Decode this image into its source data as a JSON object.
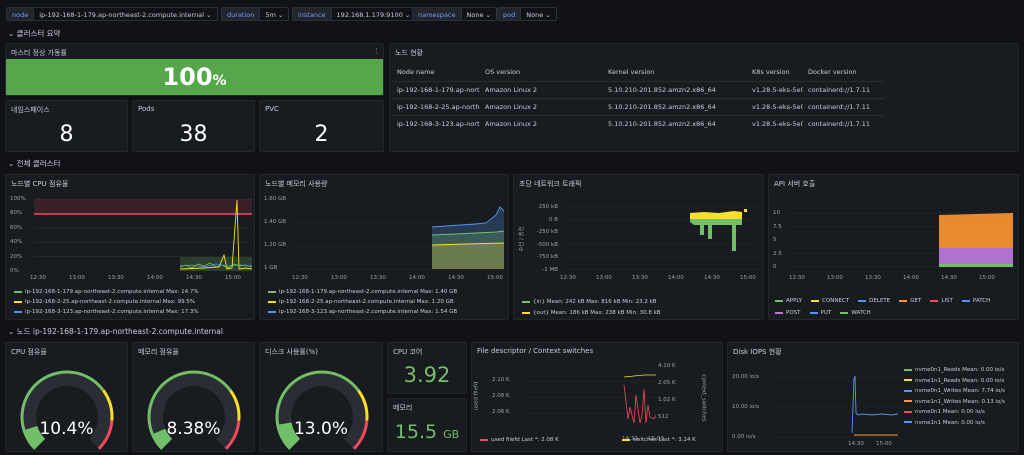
{
  "vars": [
    {
      "label": "node",
      "value": "ip-192-168-1-179.ap-northeast-2.compute.internal"
    },
    {
      "label": "duration",
      "value": "5m"
    },
    {
      "label": "instance",
      "value": "192.168.1.179:9100"
    },
    {
      "label": "namespace",
      "value": "None"
    },
    {
      "label": "pod",
      "value": "None"
    }
  ],
  "rows": {
    "summary": "클러스터 요약",
    "overall": "전체 클러스터",
    "node": "노드 ip-192-168-1-179.ap-northeast-2.compute.internal"
  },
  "master": {
    "title": "마스터 정상 가동률",
    "value": "100",
    "unit": "%"
  },
  "stats": {
    "ns": {
      "title": "네임스페이스",
      "value": "8"
    },
    "pods": {
      "title": "Pods",
      "value": "38"
    },
    "pvc": {
      "title": "PVC",
      "value": "2"
    }
  },
  "nodes": {
    "title": "노드 현황",
    "columns": [
      "Node name",
      "OS version",
      "Kernel version",
      "K8s version",
      "Docker version"
    ],
    "rows": [
      [
        "ip-192-168-1-179.ap-northe",
        "Amazon Linux 2",
        "5.10.210-201.852.amzn2.x86_64",
        "v1.28.5-eks-5e0",
        "containerd://1.7.11"
      ],
      [
        "ip-192-168-2-25.ap-northe",
        "Amazon Linux 2",
        "5.10.210-201.852.amzn2.x86_64",
        "v1.28.5-eks-5e0",
        "containerd://1.7.11"
      ],
      [
        "ip-192-168-3-123.ap-north",
        "Amazon Linux 2",
        "5.10.210-201.852.amzn2.x86_64",
        "v1.28.5-eks-5e0",
        "containerd://1.7.11"
      ]
    ]
  },
  "cpu_panel": {
    "title": "노드별 CPU 점유율",
    "yticks": [
      "100%",
      "80%",
      "60%",
      "40%",
      "20%",
      "0%"
    ],
    "xticks": [
      "12:30",
      "13:00",
      "13:30",
      "14:00",
      "14:30",
      "15:00"
    ],
    "legend": [
      "ip-192-168-1-179.ap-northeast-2.compute.internal   Max: 14.7%",
      "ip-192-168-2-25.ap-northeast-2.compute.internal   Max: 99.5%",
      "ip-192-168-3-123.ap-northeast-2.compute.internal   Max: 17.3%"
    ]
  },
  "mem_panel": {
    "title": "노드별 메모리 사용량",
    "yticks": [
      "1.60 GB",
      "1.40 GB",
      "1.20 GB",
      "1 GB"
    ],
    "xticks": [
      "12:30",
      "13:00",
      "13:30",
      "14:00",
      "14:30",
      "15:00"
    ],
    "legend": [
      "ip-192-168-1-179.ap-northeast-2.compute.internal   Max: 1.40 GB",
      "ip-192-168-2-25.ap-northeast-2.compute.internal   Max: 1.20 GB",
      "ip-192-168-3-123.ap-northeast-2.compute.internal   Max: 1.54 GB"
    ]
  },
  "net_panel": {
    "title": "초당 네트워크 트래픽",
    "ylabel": "수신 / 송신",
    "yticks": [
      "250 kB",
      "0 B",
      "-250 kB",
      "-500 kB",
      "-750 kB",
      "-1 MB"
    ],
    "xticks": [
      "12:30",
      "13:00",
      "13:30",
      "14:00",
      "14:30",
      "15:00"
    ],
    "legend": [
      "{in}   Mean: 242 kB   Max: 816 kB   Min: 23.2 kB",
      "{out}   Mean: 186 kB   Max: 238 kB   Min: 30.8 kB"
    ]
  },
  "api_panel": {
    "title": "API 서버 호출",
    "yticks": [
      "10",
      "7.5",
      "5",
      "2.5",
      "0"
    ],
    "xticks": [
      "12:30",
      "13:00",
      "13:30",
      "14:00",
      "14:30",
      "15:00"
    ],
    "legend": [
      "APPLY",
      "CONNECT",
      "DELETE",
      "GET",
      "LIST",
      "PATCH",
      "POST",
      "PUT",
      "WATCH"
    ]
  },
  "gauges": [
    {
      "title": "CPU 점유율",
      "value": "10.4%",
      "level": 0.104
    },
    {
      "title": "메모리 점유율",
      "value": "8.38%",
      "level": 0.0838
    },
    {
      "title": "디스크 사용률(%)",
      "value": "13.0%",
      "level": 0.13
    }
  ],
  "cores": {
    "title": "CPU 코어",
    "value": "3.92"
  },
  "memory": {
    "title": "메모리",
    "value": "15.5",
    "unit": "GB"
  },
  "fd_panel": {
    "title": "File descriptor / Context switches",
    "ylabel_left": "used filefd",
    "ylabel_right": "context_switches",
    "yticks_left": [
      "2.10 K",
      "2.08 K",
      "2.06 K"
    ],
    "yticks_right": [
      "4.10 K",
      "2.05 K",
      "1.02 K",
      "512"
    ],
    "xticks": [
      "14:30",
      "15:00"
    ],
    "legend": [
      "used filefd   Last *: 2.08 K",
      "switches   Last *: 3.14 K"
    ]
  },
  "iops_panel": {
    "title": "Disk IOPS 현황",
    "yticks": [
      "20.00 io/s",
      "10.00 io/s",
      "0.00 io/s"
    ],
    "xticks": [
      "14:30",
      "15:00"
    ],
    "legend": [
      "nvme0n1_Reads   Mean: 0.00 io/s",
      "nvme1n1_Reads   Mean: 0.00 io/s",
      "nvme0n1_Writes   Mean: 7.74 io/s",
      "nvme1n1_Writes   Mean: 0.13 io/s",
      "nvme0n1   Mean: 0.00 io/s",
      "nvme1n1   Mean: 0.00 io/s"
    ]
  },
  "colors": {
    "green": "#73bf69",
    "yellow": "#fade2a",
    "blue": "#5794f2",
    "orange": "#ff9830",
    "red": "#f2495c",
    "purple": "#b877d9",
    "panel": "#181b1f"
  }
}
